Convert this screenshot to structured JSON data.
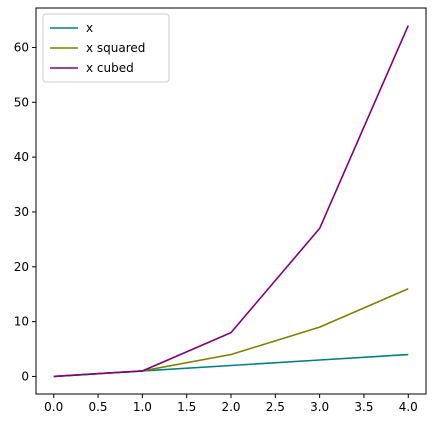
{
  "chart_data": {
    "type": "line",
    "x": [
      0,
      1,
      2,
      3,
      4
    ],
    "series": [
      {
        "name": "x",
        "values": [
          0,
          1,
          2,
          3,
          4
        ],
        "color": "#008080"
      },
      {
        "name": "x squared",
        "values": [
          0,
          1,
          4,
          9,
          16
        ],
        "color": "#808000"
      },
      {
        "name": "x cubed",
        "values": [
          0,
          1,
          8,
          27,
          64
        ],
        "color": "#800080"
      }
    ],
    "xlim": [
      -0.2,
      4.2
    ],
    "ylim": [
      -3.2,
      67.2
    ],
    "xticks": [
      "0.0",
      "0.5",
      "1.0",
      "1.5",
      "2.0",
      "2.5",
      "3.0",
      "3.5",
      "4.0"
    ],
    "yticks": [
      "0",
      "10",
      "20",
      "30",
      "40",
      "50",
      "60"
    ],
    "xtick_values": [
      0,
      0.5,
      1,
      1.5,
      2,
      2.5,
      3,
      3.5,
      4
    ],
    "ytick_values": [
      0,
      10,
      20,
      30,
      40,
      50,
      60
    ],
    "title": "",
    "xlabel": "",
    "ylabel": "",
    "grid": false,
    "legend_position": "top-left"
  }
}
